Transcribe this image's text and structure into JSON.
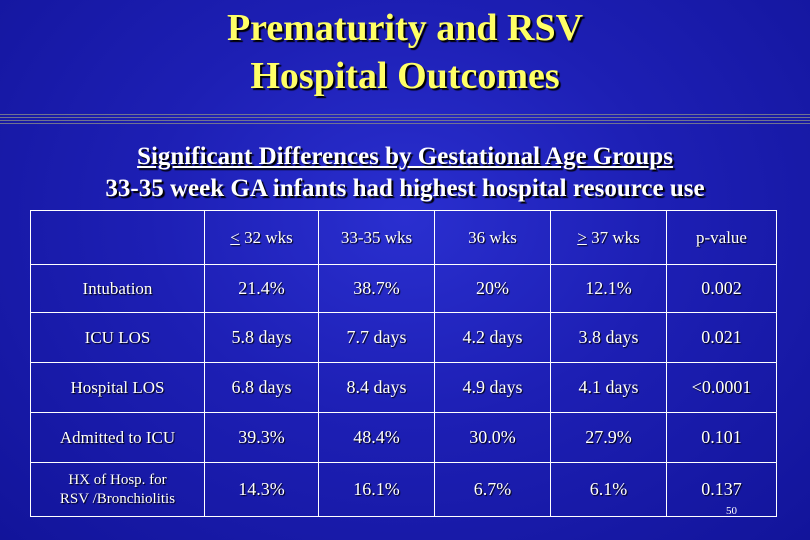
{
  "title": {
    "line1": "Prematurity and RSV",
    "line2": "Hospital Outcomes"
  },
  "subtitle": {
    "line1": "Significant Differences by Gestational Age Groups",
    "line2": "33-35 week GA infants had highest hospital resource use"
  },
  "table": {
    "headers": [
      "",
      "< 32 wks",
      "33-35 wks",
      "36 wks",
      "> 37 wks",
      "p-value"
    ],
    "header_symbols": {
      "lt": "<",
      "lt_rest": " 32 wks",
      "gt": ">",
      "gt_rest": " 37 wks"
    },
    "rows": [
      {
        "label": "Intubation",
        "values": [
          "21.4%",
          "38.7%",
          "20%",
          "12.1%",
          "0.002"
        ]
      },
      {
        "label": "ICU LOS",
        "values": [
          "5.8 days",
          "7.7 days",
          "4.2 days",
          "3.8 days",
          "0.021"
        ]
      },
      {
        "label": "Hospital LOS",
        "values": [
          "6.8 days",
          "8.4 days",
          "4.9 days",
          "4.1 days",
          "<0.0001"
        ]
      },
      {
        "label": "Admitted to ICU",
        "values": [
          "39.3%",
          "48.4%",
          "30.0%",
          "27.9%",
          "0.101"
        ]
      },
      {
        "label_line1": "HX of Hosp. for",
        "label_line2": "RSV /Bronchiolitis",
        "values": [
          "14.3%",
          "16.1%",
          "6.7%",
          "6.1%",
          "0.137"
        ]
      }
    ]
  },
  "page_number": "50"
}
